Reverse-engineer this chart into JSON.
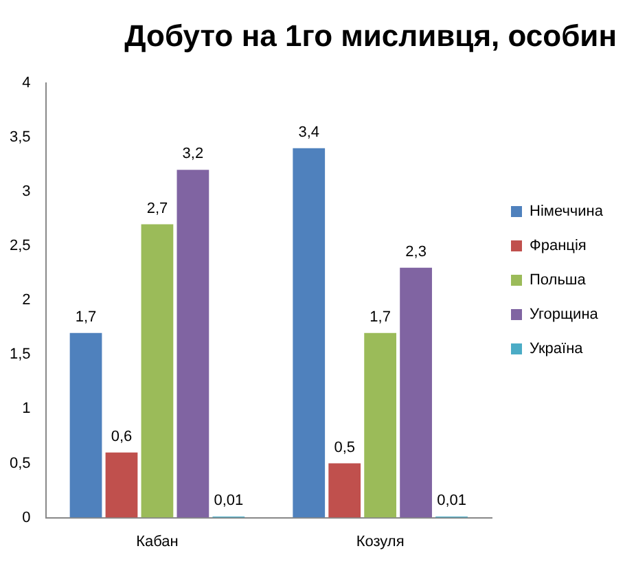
{
  "chart_data": {
    "type": "bar",
    "title": "Добуто на 1го мисливця, особин",
    "categories": [
      "Кабан",
      "Козуля"
    ],
    "series": [
      {
        "name": "Німеччина",
        "color": "#4f81bd",
        "values": [
          1.7,
          3.4
        ],
        "value_labels": [
          "1,7",
          "3,4"
        ]
      },
      {
        "name": "Франція",
        "color": "#c0504d",
        "values": [
          0.6,
          0.5
        ],
        "value_labels": [
          "0,6",
          "0,5"
        ]
      },
      {
        "name": "Польша",
        "color": "#9bbb59",
        "values": [
          2.7,
          1.7
        ],
        "value_labels": [
          "2,7",
          "1,7"
        ]
      },
      {
        "name": "Угорщина",
        "color": "#8064a2",
        "values": [
          3.2,
          2.3
        ],
        "value_labels": [
          "3,2",
          "2,3"
        ]
      },
      {
        "name": "Україна",
        "color": "#4bacc6",
        "values": [
          0.01,
          0.01
        ],
        "value_labels": [
          "0,01",
          "0,01"
        ]
      }
    ],
    "ylim": [
      0,
      4
    ],
    "yticks": [
      0,
      {
        "value": 0.5,
        "label": "0,5"
      },
      1,
      {
        "value": 1.5,
        "label": "1,5"
      },
      2,
      {
        "value": 2.5,
        "label": "2,5"
      },
      3,
      {
        "value": 3.5,
        "label": "3,5"
      },
      4
    ],
    "grid": false,
    "legend": "right"
  }
}
